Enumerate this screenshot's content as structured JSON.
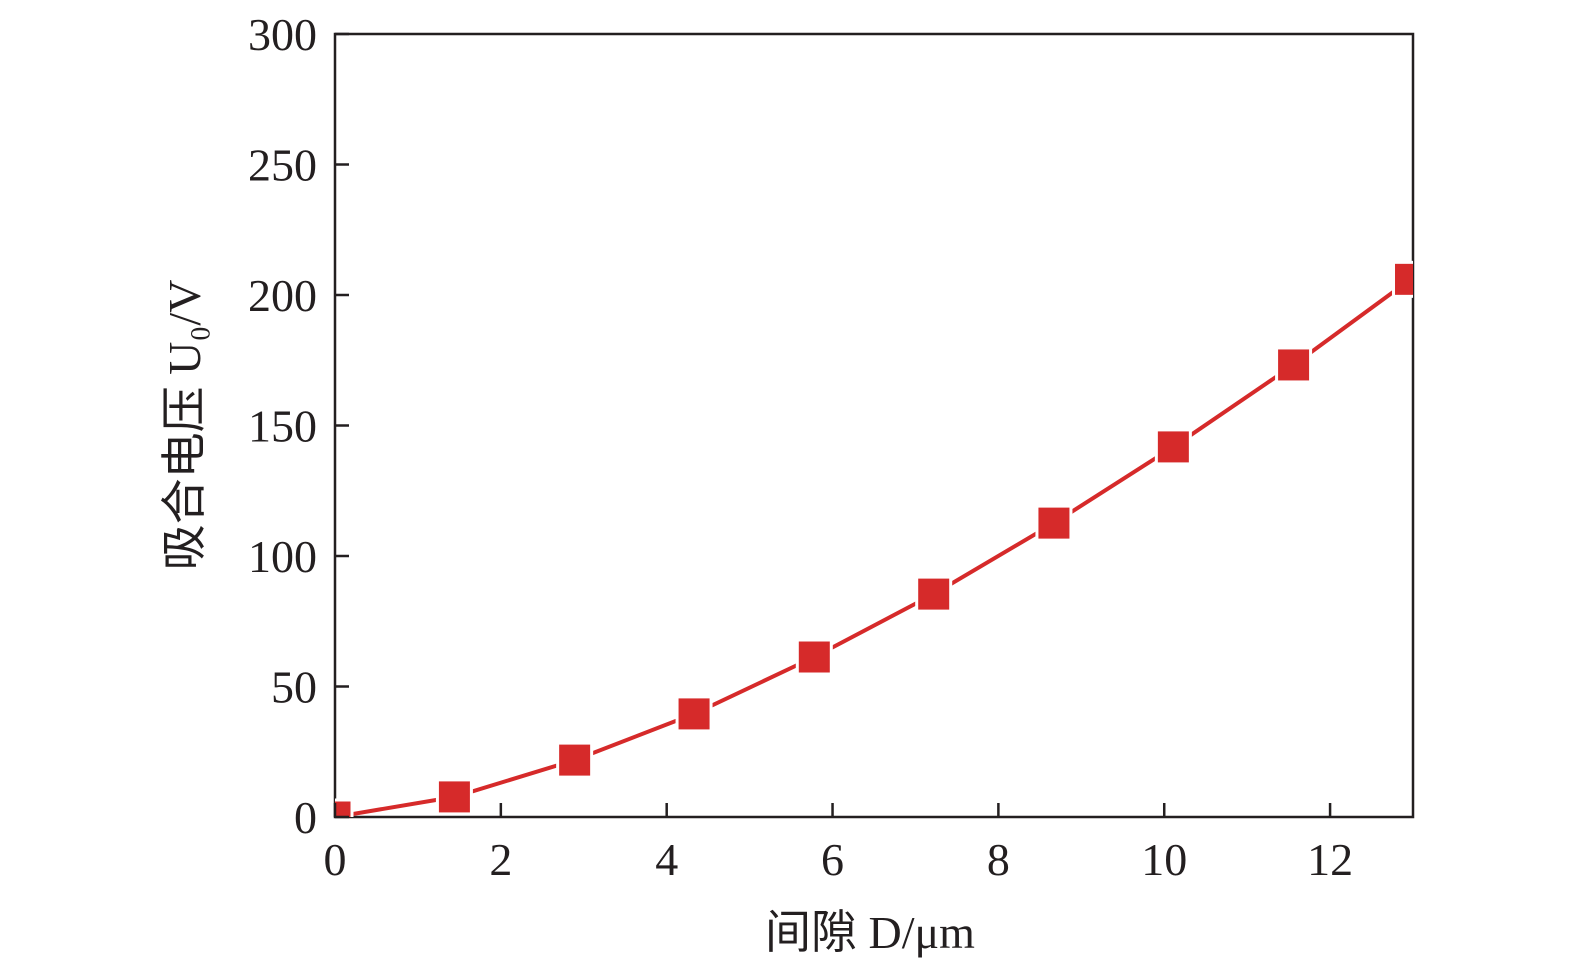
{
  "chart_data": {
    "type": "line",
    "x_label": "间隙 D/μm",
    "y_label": "吸合电压 U₀/V",
    "x": [
      0,
      1.44,
      2.89,
      4.33,
      5.78,
      7.22,
      8.67,
      10.11,
      11.56,
      12.97
    ],
    "series": [
      {
        "name": "U0",
        "color": "#d62a2a",
        "values": [
          0,
          7.7,
          21.8,
          39.5,
          61.3,
          85.4,
          112.6,
          141.8,
          173.2,
          206
        ]
      }
    ],
    "xlim": [
      0,
      13
    ],
    "xticks": [
      0,
      2,
      4,
      6,
      8,
      10,
      12
    ],
    "ylim": [
      0,
      300
    ],
    "yticks": [
      0,
      50,
      100,
      150,
      200,
      250,
      300
    ]
  }
}
